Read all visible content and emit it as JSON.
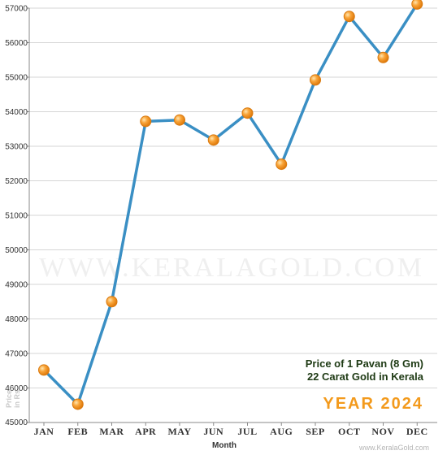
{
  "chart_data": {
    "type": "line",
    "categories": [
      "JAN",
      "FEB",
      "MAR",
      "APR",
      "MAY",
      "JUN",
      "JUL",
      "AUG",
      "SEP",
      "OCT",
      "NOV",
      "DEC"
    ],
    "values": [
      46520,
      45530,
      48500,
      53720,
      53760,
      53180,
      53960,
      52480,
      54920,
      56760,
      55570,
      57120
    ],
    "y_ticks": [
      "45000",
      "46000",
      "47000",
      "48000",
      "49000",
      "50000",
      "51000",
      "52000",
      "53000",
      "54000",
      "55000",
      "56000",
      "57000"
    ],
    "ylim": [
      45000,
      57000
    ],
    "xlabel": "Month",
    "ylabel_line1": "Price",
    "ylabel_line2": "in Rs",
    "legend_line1": "Price of 1 Pavan (8 Gm)",
    "legend_line2": "22 Carat Gold in Kerala",
    "year_label": "YEAR 2024",
    "grid": true,
    "line_color": "#3a8fc4",
    "marker_color": "#f7951d",
    "grid_color": "#d6d6d6"
  },
  "watermark": "WWW.KERALAGOLD.COM",
  "credit": "www.KeralaGold.com"
}
